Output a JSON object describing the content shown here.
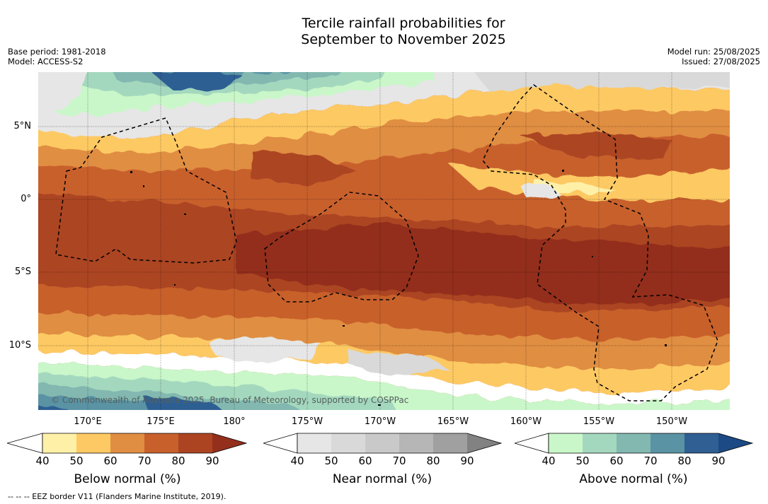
{
  "title_line1": "Tercile rainfall probabilities for",
  "title_line2": "September to November 2025",
  "meta_left": [
    "Base period: 1981-2018",
    "Model: ACCESS-S2"
  ],
  "meta_right": [
    "Model run: 25/08/2025",
    "Issued: 27/08/2025"
  ],
  "copyright": "© Commonwealth of Australia 2025, Bureau of Meteorology, supported by COSPPac",
  "lat_labels": [
    "5°N",
    "0°",
    "5°S",
    "10°S"
  ],
  "lon_labels": [
    "170°E",
    "175°E",
    "180°",
    "175°W",
    "170°W",
    "165°W",
    "160°W",
    "155°W",
    "150°W"
  ],
  "colorbars": [
    {
      "label": "Below normal (%)",
      "ticks": [
        "40",
        "50",
        "60",
        "70",
        "80",
        "90"
      ],
      "colors": [
        "#fff0a8",
        "#fdc964",
        "#e08e42",
        "#c8602c",
        "#ac4422"
      ],
      "extend_color": "#932f1b"
    },
    {
      "label": "Near normal (%)",
      "ticks": [
        "40",
        "50",
        "60",
        "70",
        "80",
        "90"
      ],
      "colors": [
        "#e6e6e6",
        "#d9d9d9",
        "#c9c9c9",
        "#b6b6b6",
        "#a0a0a0"
      ],
      "extend_color": "#828282"
    },
    {
      "label": "Above normal (%)",
      "ticks": [
        "40",
        "50",
        "60",
        "70",
        "80",
        "90"
      ],
      "colors": [
        "#c9f7c9",
        "#a4d8be",
        "#82b8b0",
        "#5a93a4",
        "#2f5f93"
      ],
      "extend_color": "#1c4a85"
    }
  ],
  "footer": "--  --  -- EEZ border V11 (Flanders Marine Institute, 2019)."
}
